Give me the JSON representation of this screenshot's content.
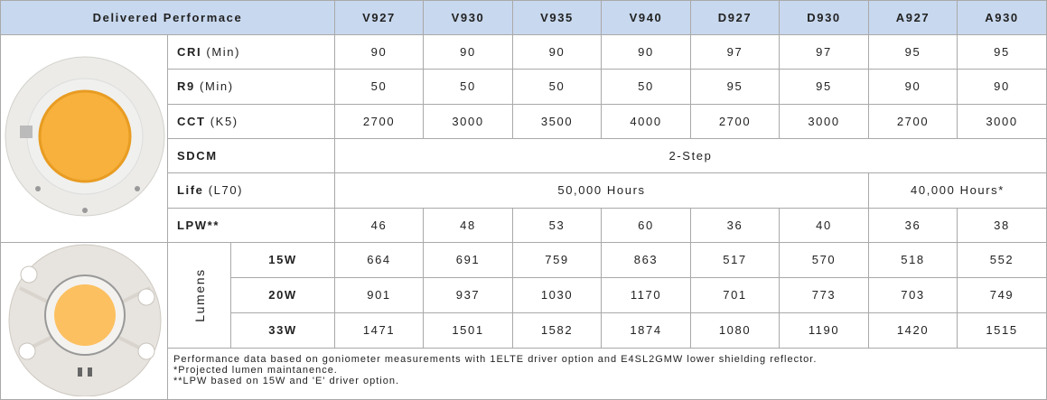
{
  "header": {
    "title": "Delivered Performace",
    "columns": [
      "V927",
      "V930",
      "V935",
      "V940",
      "D927",
      "D930",
      "A927",
      "A930"
    ]
  },
  "rows": [
    {
      "label": "CRI",
      "qualifier": "(Min)",
      "values": [
        90,
        90,
        90,
        90,
        97,
        97,
        95,
        95
      ]
    },
    {
      "label": "R9",
      "qualifier": "(Min)",
      "values": [
        50,
        50,
        50,
        50,
        95,
        95,
        90,
        90
      ]
    },
    {
      "label": "CCT",
      "qualifier": "(K5)",
      "values": [
        2700,
        3000,
        3500,
        4000,
        2700,
        3000,
        2700,
        3000
      ]
    },
    {
      "label": "SDCM",
      "values": [
        "2-Step"
      ]
    },
    {
      "label": "Life",
      "qualifier": "(L70)",
      "values": [
        "50,000 Hours",
        "40,000 Hours*"
      ]
    },
    {
      "label": "LPW**",
      "values": [
        46,
        48,
        53,
        60,
        36,
        40,
        36,
        38
      ]
    }
  ],
  "lumens": {
    "label": "Lumens",
    "rows": [
      {
        "label": "15W",
        "values": [
          664,
          691,
          759,
          863,
          517,
          570,
          518,
          552
        ]
      },
      {
        "label": "20W",
        "values": [
          901,
          937,
          1030,
          1170,
          701,
          773,
          703,
          749
        ]
      },
      {
        "label": "33W",
        "values": [
          1471,
          1501,
          1582,
          1874,
          1080,
          1190,
          1420,
          1515
        ]
      }
    ]
  },
  "notes": [
    "Performance data based on goniometer measurements with 1ELTE driver option and E4SL2GMW lower shielding reflector.",
    "*Projected lumen maintanence.",
    "**LPW based on 15W and 'E' driver option."
  ]
}
